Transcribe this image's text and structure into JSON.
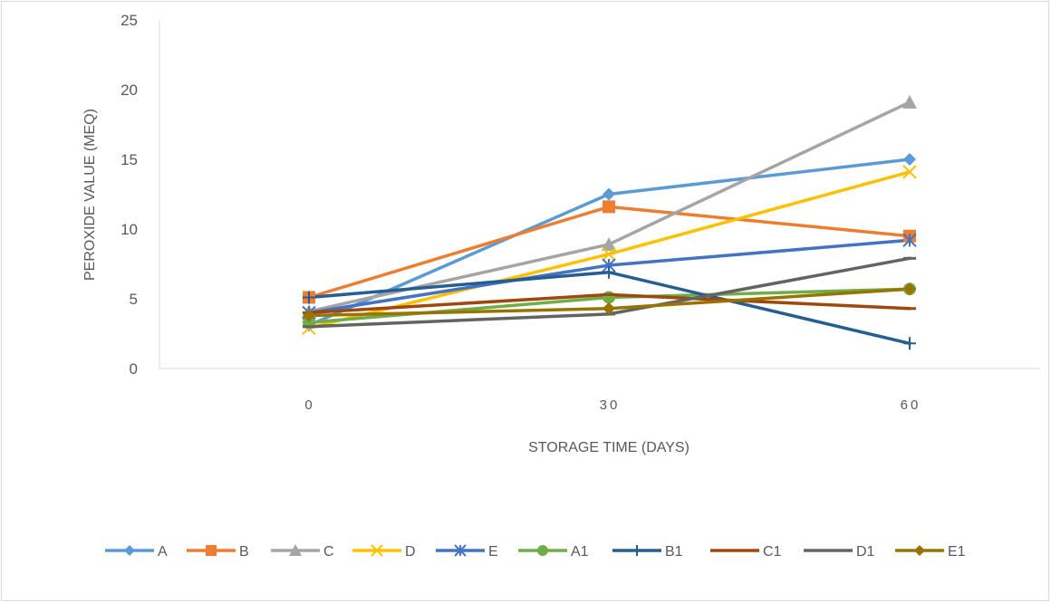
{
  "chart_data": {
    "type": "line",
    "title": "",
    "xlabel": "STORAGE TIME (DAYS)",
    "ylabel": "PEROXIDE VALUE (MEQ)",
    "categories": [
      "0",
      "30",
      "60"
    ],
    "ylim": [
      0,
      25
    ],
    "yticks": [
      "0",
      "5",
      "10",
      "15",
      "20",
      "25"
    ],
    "grid": false,
    "legend_position": "bottom",
    "series": [
      {
        "name": "A",
        "color": "#5B9BD5",
        "marker": "diamond",
        "values": [
          3.1,
          12.5,
          15.0
        ]
      },
      {
        "name": "B",
        "color": "#ED7D31",
        "marker": "square",
        "values": [
          5.1,
          11.6,
          9.5
        ]
      },
      {
        "name": "C",
        "color": "#A5A5A5",
        "marker": "triangle",
        "values": [
          4.1,
          8.9,
          19.1
        ]
      },
      {
        "name": "D",
        "color": "#FFC000",
        "marker": "x",
        "values": [
          2.9,
          8.2,
          14.1
        ]
      },
      {
        "name": "E",
        "color": "#4472C4",
        "marker": "star",
        "values": [
          4.0,
          7.4,
          9.2
        ]
      },
      {
        "name": "A1",
        "color": "#70AD47",
        "marker": "circle",
        "values": [
          3.3,
          5.1,
          5.7
        ]
      },
      {
        "name": "B1",
        "color": "#255E91",
        "marker": "plus",
        "values": [
          5.1,
          6.9,
          1.8
        ]
      },
      {
        "name": "C1",
        "color": "#9E480E",
        "marker": "dash",
        "values": [
          4.0,
          5.3,
          4.3
        ]
      },
      {
        "name": "D1",
        "color": "#636363",
        "marker": "dash",
        "values": [
          3.0,
          3.9,
          7.9
        ]
      },
      {
        "name": "E1",
        "color": "#997300",
        "marker": "diamond",
        "values": [
          3.8,
          4.3,
          5.7
        ]
      }
    ]
  }
}
